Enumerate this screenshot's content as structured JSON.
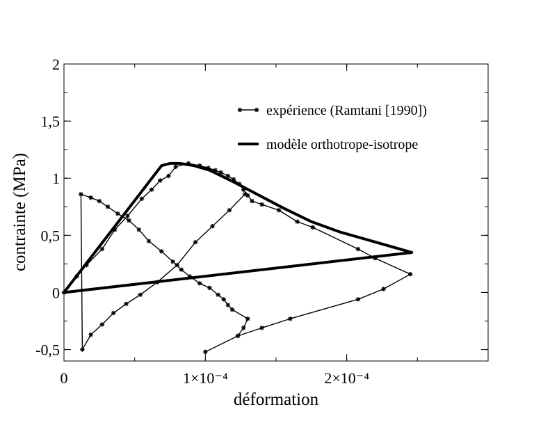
{
  "chart_data": {
    "type": "line",
    "xlabel": "déformation",
    "ylabel": "contrainte (MPa)",
    "xlim": [
      0,
      0.0003
    ],
    "ylim": [
      -0.6,
      2
    ],
    "x_ticks": [
      {
        "value": 0,
        "label": "0"
      },
      {
        "value": 0.0001,
        "label": "1×10⁻⁴"
      },
      {
        "value": 0.0002,
        "label": "2×10⁻⁴"
      }
    ],
    "y_ticks": [
      {
        "value": -0.5,
        "label": "-0,5"
      },
      {
        "value": 0,
        "label": "0"
      },
      {
        "value": 0.5,
        "label": "0,5"
      },
      {
        "value": 1,
        "label": "1"
      },
      {
        "value": 1.5,
        "label": "1,5"
      },
      {
        "value": 2,
        "label": "2"
      }
    ],
    "grid": false,
    "legend": "top-right",
    "series": [
      {
        "name": "expérience (Ramtani [1990])",
        "style": "thin line with star markers",
        "color": "#000000",
        "x": [
          0,
          9e-06,
          1.6e-05,
          2.7e-05,
          3.6e-05,
          4.5e-05,
          5.5e-05,
          6.2e-05,
          6.8e-05,
          7.4e-05,
          7.9e-05,
          8.8e-05,
          9.6e-05,
          0.000102,
          0.000107,
          0.000111,
          0.000116,
          0.00012,
          0.000124,
          0.000127,
          0.00013,
          0.000133,
          0.00014,
          0.000152,
          0.000165,
          0.000176,
          0.000208,
          0.00022,
          0.000245,
          0.000226,
          0.000208,
          0.00016,
          0.00014,
          0.000123,
          0.0001,
          0.000123,
          0.000127,
          0.00013,
          0.000119,
          0.000116,
          0.000113,
          0.000109,
          0.000103,
          9.6e-05,
          8.9e-05,
          8.3e-05,
          7.7e-05,
          6.9e-05,
          6e-05,
          5.3e-05,
          4.6e-05,
          3.8e-05,
          3.1e-05,
          2.5e-05,
          1.9e-05,
          1.2e-05,
          1.3e-05,
          1.9e-05,
          2.7e-05,
          3.5e-05,
          4.4e-05,
          5.4e-05,
          6.6e-05,
          8e-05,
          9.3e-05,
          0.000105,
          0.000117,
          0.000128
        ],
        "y": [
          0,
          0.14,
          0.24,
          0.38,
          0.55,
          0.67,
          0.82,
          0.9,
          0.98,
          1.02,
          1.1,
          1.13,
          1.11,
          1.09,
          1.07,
          1.05,
          1.02,
          0.99,
          0.95,
          0.9,
          0.85,
          0.8,
          0.77,
          0.72,
          0.62,
          0.57,
          0.38,
          0.3,
          0.16,
          0.03,
          -0.06,
          -0.23,
          -0.31,
          -0.38,
          -0.52,
          -0.38,
          -0.31,
          -0.23,
          -0.15,
          -0.11,
          -0.06,
          -0.02,
          0.04,
          0.08,
          0.14,
          0.2,
          0.27,
          0.36,
          0.45,
          0.55,
          0.63,
          0.69,
          0.75,
          0.8,
          0.83,
          0.86,
          -0.5,
          -0.37,
          -0.28,
          -0.18,
          -0.1,
          -0.02,
          0.09,
          0.24,
          0.44,
          0.58,
          0.72,
          0.86
        ]
      },
      {
        "name": "modèle orthotrope-isotrope",
        "style": "thick line",
        "color": "#000000",
        "x": [
          0,
          6.9e-05,
          7.5e-05,
          8.2e-05,
          9.2e-05,
          0.000103,
          0.000118,
          0.000135,
          0.000155,
          0.000175,
          0.000195,
          0.000215,
          0.000232,
          0.000246,
          0
        ],
        "y": [
          0,
          1.11,
          1.13,
          1.13,
          1.11,
          1.07,
          0.98,
          0.87,
          0.74,
          0.62,
          0.53,
          0.46,
          0.4,
          0.35,
          0
        ]
      }
    ]
  }
}
